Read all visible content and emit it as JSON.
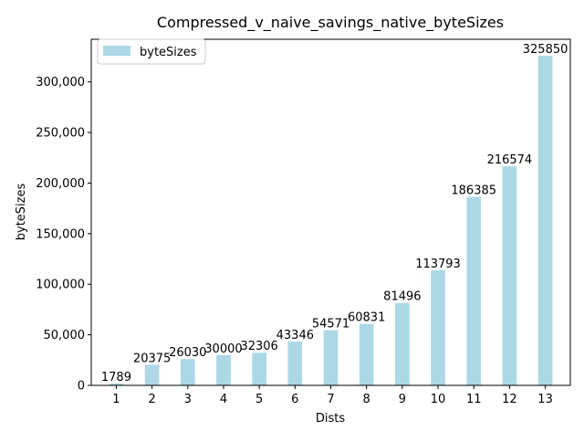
{
  "chart_data": {
    "type": "bar",
    "title": "Compressed_v_naive_savings_native_byteSizes",
    "xlabel": "Dists",
    "ylabel": "byteSizes",
    "categories": [
      "1",
      "2",
      "3",
      "4",
      "5",
      "6",
      "7",
      "8",
      "9",
      "10",
      "11",
      "12",
      "13"
    ],
    "series": [
      {
        "name": "byteSizes",
        "values": [
          1789,
          20375,
          26030,
          30000,
          32306,
          43346,
          54571,
          60831,
          81496,
          113793,
          186385,
          216574,
          325850
        ],
        "color": "#add8e6"
      }
    ],
    "data_labels": [
      "1789",
      "20375",
      "26030",
      "30000",
      "32306",
      "43346",
      "54571",
      "60831",
      "81496",
      "113793",
      "186385",
      "216574",
      "325850"
    ],
    "y_ticks": [
      0,
      50000,
      100000,
      150000,
      200000,
      250000,
      300000
    ],
    "y_tick_labels": [
      "0",
      "50,000",
      "100,000",
      "150,000",
      "200,000",
      "250,000",
      "300,000"
    ],
    "ylim": [
      0,
      342142
    ],
    "grid": false,
    "legend_position": "top-left"
  }
}
